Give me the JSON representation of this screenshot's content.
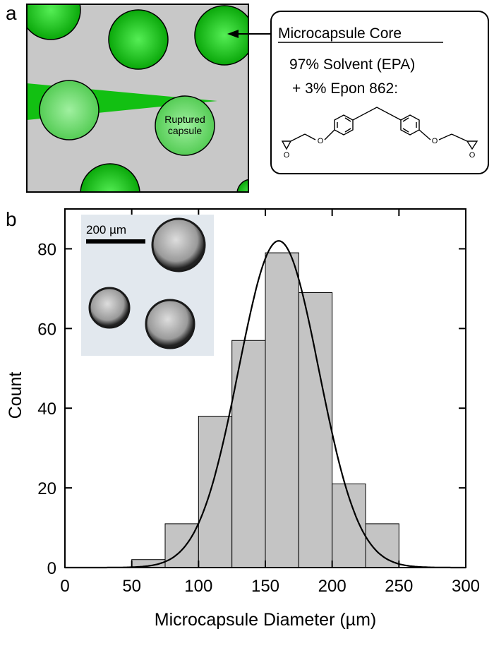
{
  "panel_a": {
    "label": "a",
    "ruptured_line1": "Ruptured",
    "ruptured_line2": "capsule",
    "core_box": {
      "title": "Microcapsule Core",
      "line1": "97% Solvent (EPA)",
      "line2": "+ 3% Epon 862:",
      "atom_o": "O"
    },
    "colors": {
      "capsule": "#10c010",
      "capsule_light": "#6fe06f",
      "matrix": "#c8c8c8"
    }
  },
  "panel_b": {
    "label": "b",
    "inset_scale_text": "200 µm"
  },
  "chart_data": {
    "type": "bar",
    "xlabel": "Microcapsule Diameter (µm)",
    "ylabel": "Count",
    "xlim": [
      0,
      300
    ],
    "ylim": [
      0,
      90
    ],
    "xticks": [
      0,
      50,
      100,
      150,
      200,
      250,
      300
    ],
    "yticks": [
      0,
      20,
      40,
      60,
      80
    ],
    "bin_edges": [
      50,
      75,
      100,
      125,
      150,
      175,
      200,
      225,
      250
    ],
    "values": [
      2,
      11,
      38,
      57,
      79,
      69,
      21,
      11
    ],
    "fit": {
      "type": "gaussian",
      "mean": 160,
      "sd": 30,
      "peak": 82
    },
    "bar_color": "#c4c4c4",
    "grid": false
  }
}
